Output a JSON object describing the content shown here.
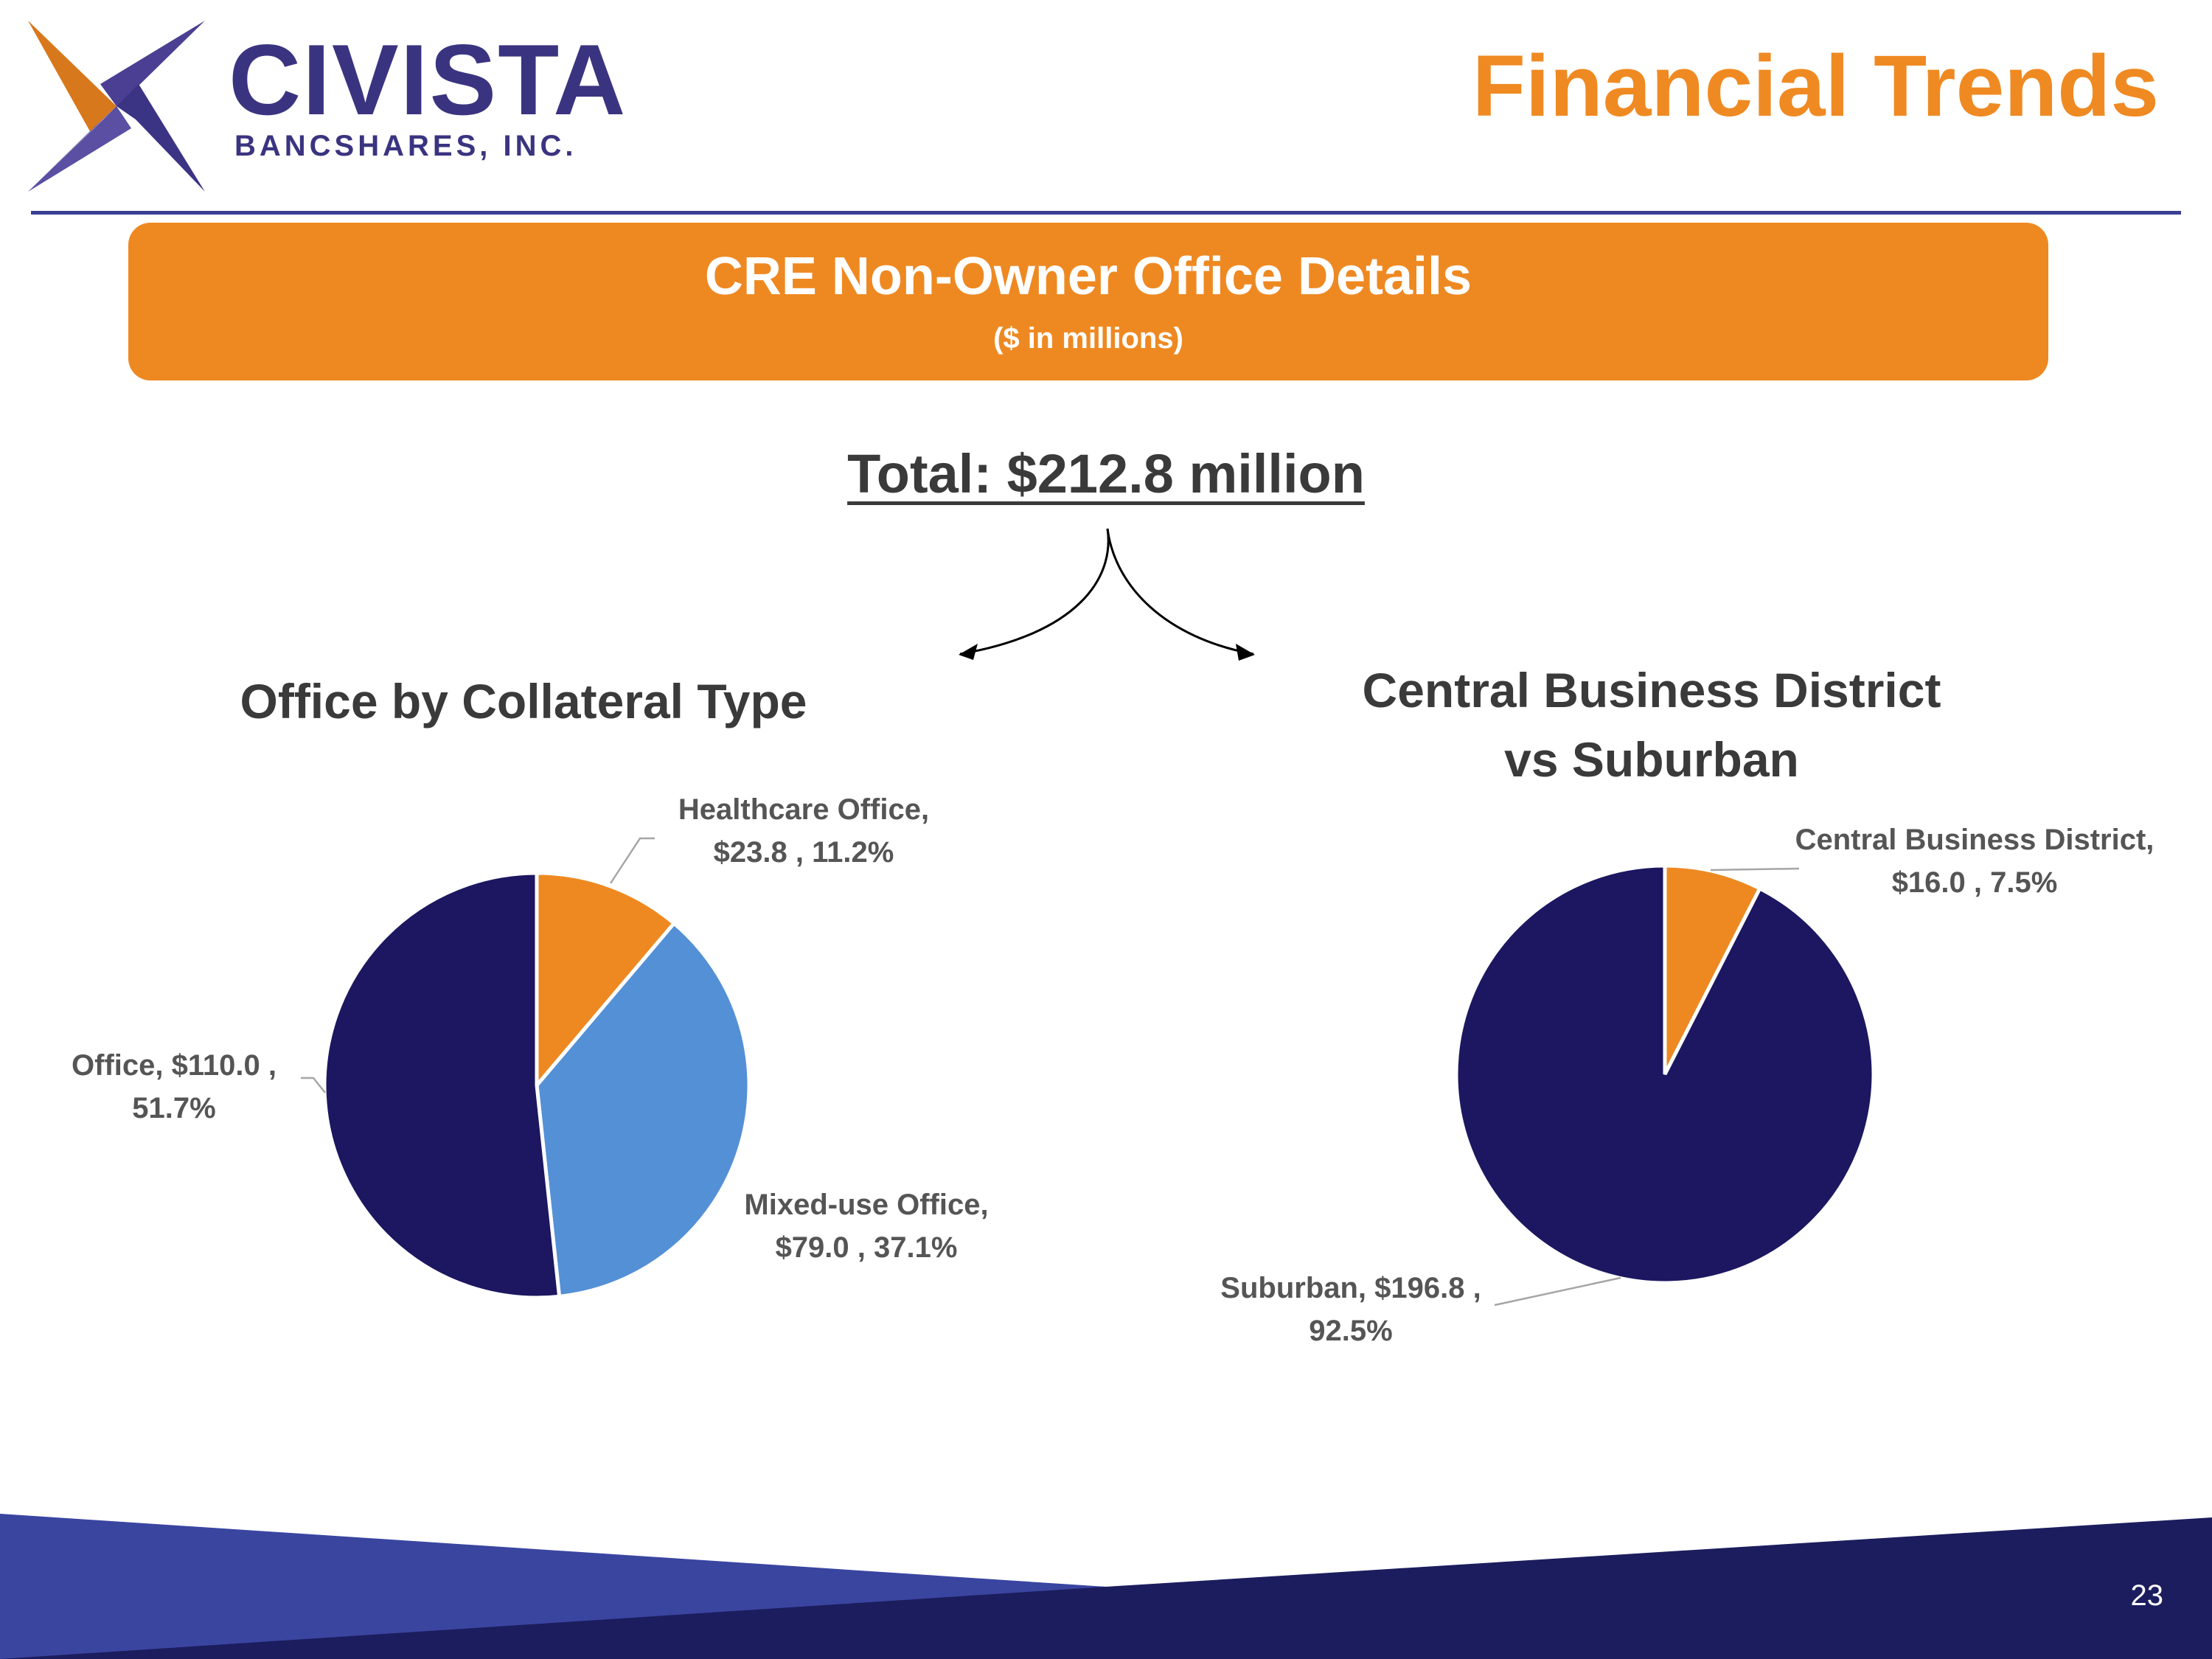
{
  "header": {
    "logo_name": "CIVISTA",
    "logo_sub": "BANCSHARES, INC.",
    "page_title": "Financial Trends"
  },
  "banner": {
    "title": "CRE Non-Owner Office Details",
    "subtitle": "($ in millions)"
  },
  "total_label": "Total: $212.8 million",
  "colors": {
    "orange": "#ee8922",
    "navy": "#1c1760",
    "light_blue": "#5490d6",
    "footer_blue": "#3a45a0",
    "footer_navy": "#1c1d5e"
  },
  "chart_data": [
    {
      "type": "pie",
      "title": "Office by Collateral Type",
      "categories": [
        "Healthcare Office",
        "Mixed-use Office",
        "Office"
      ],
      "values": [
        23.8,
        79.0,
        110.0
      ],
      "percents": [
        11.2,
        37.1,
        51.7
      ],
      "colors": [
        "#ee8922",
        "#5490d6",
        "#1c1760"
      ],
      "labels": [
        [
          "Healthcare Office,",
          "$23.8 , 11.2%"
        ],
        [
          "Mixed-use Office,",
          "$79.0 , 37.1%"
        ],
        [
          "Office,  $110.0 ,",
          "51.7%"
        ]
      ]
    },
    {
      "type": "pie",
      "title": "Central Business District vs Suburban",
      "title_lines": [
        "Central Business District",
        "vs Suburban"
      ],
      "categories": [
        "Central Business District",
        "Suburban"
      ],
      "values": [
        16.0,
        196.8
      ],
      "percents": [
        7.5,
        92.5
      ],
      "colors": [
        "#ee8922",
        "#1c1760"
      ],
      "labels": [
        [
          "Central Business District,",
          "$16.0 , 7.5%"
        ],
        [
          "Suburban,  $196.8 ,",
          "92.5%"
        ]
      ]
    }
  ],
  "footer": {
    "page_number": "23"
  }
}
